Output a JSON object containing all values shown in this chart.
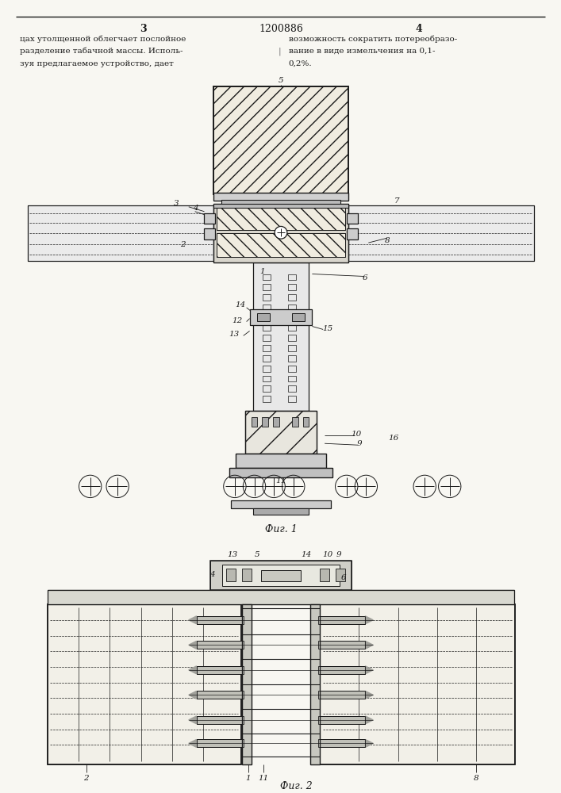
{
  "bg_color": "#f8f7f2",
  "line_color": "#1a1a1a",
  "page_num_left": "3",
  "page_num_center": "1200886",
  "page_num_right": "4",
  "text_left": [
    "цах утолщенной облегчает послойное",
    "разделение табачной массы. Исполь-",
    "зуя предлагаемое устройство, дает"
  ],
  "text_right": [
    "возможность сократить потереобразо-",
    "вание в виде измельчения на 0,1-",
    "0,2%."
  ],
  "fig1_caption": "Фиг. 1",
  "fig2_caption": "Фиг. 2"
}
